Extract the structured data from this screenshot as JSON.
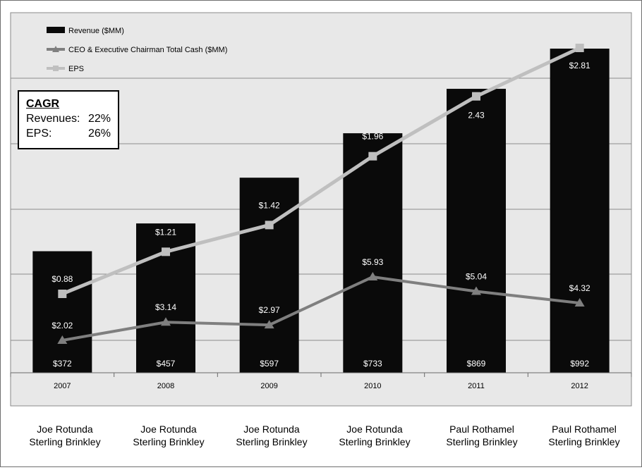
{
  "chart_data": {
    "type": "bar",
    "categories": [
      "2007",
      "2008",
      "2009",
      "2010",
      "2011",
      "2012"
    ],
    "ylim": [
      0,
      1000
    ],
    "grid": true,
    "legend_position": "top-left",
    "series": [
      {
        "name": "Revenue ($MM)",
        "kind": "bar",
        "color": "#0a0a0a",
        "values": [
          372,
          457,
          597,
          733,
          869,
          992
        ],
        "labels": [
          "$372",
          "$457",
          "$597",
          "$733",
          "$869",
          "$992"
        ]
      },
      {
        "name": "CEO & Executive Chairman Total Cash ($MM)",
        "kind": "line",
        "marker": "triangle",
        "color": "#7f7f7f",
        "values": [
          2.02,
          3.14,
          2.97,
          5.93,
          5.04,
          4.32
        ],
        "labels": [
          "$2.02",
          "$3.14",
          "$2.97",
          "$5.93",
          "$5.04",
          "$4.32"
        ]
      },
      {
        "name": "EPS",
        "kind": "line",
        "marker": "square",
        "color": "#bfbfbf",
        "values": [
          0.88,
          1.21,
          1.42,
          1.96,
          2.43,
          2.81
        ],
        "labels": [
          "$0.88",
          "$1.21",
          "$1.42",
          "$1.96",
          "2.43",
          "$2.81"
        ]
      }
    ]
  },
  "cagr": {
    "title": "CAGR",
    "rows": [
      {
        "label": "Revenues:",
        "value": "22%"
      },
      {
        "label": "EPS:",
        "value": "26%"
      }
    ]
  },
  "executives": [
    {
      "line1": "Joe Rotunda",
      "line2": "Sterling Brinkley"
    },
    {
      "line1": "Joe Rotunda",
      "line2": "Sterling Brinkley"
    },
    {
      "line1": "Joe Rotunda",
      "line2": "Sterling Brinkley"
    },
    {
      "line1": "Joe Rotunda",
      "line2": "Sterling Brinkley"
    },
    {
      "line1": "Paul Rothamel",
      "line2": "Sterling Brinkley"
    },
    {
      "line1": "Paul Rothamel",
      "line2": "Sterling Brinkley"
    }
  ],
  "colors": {
    "plot_background": "#e8e8e8",
    "gridline": "#8c8c8c",
    "bar": "#0a0a0a",
    "bar_label": "#ffffff"
  }
}
